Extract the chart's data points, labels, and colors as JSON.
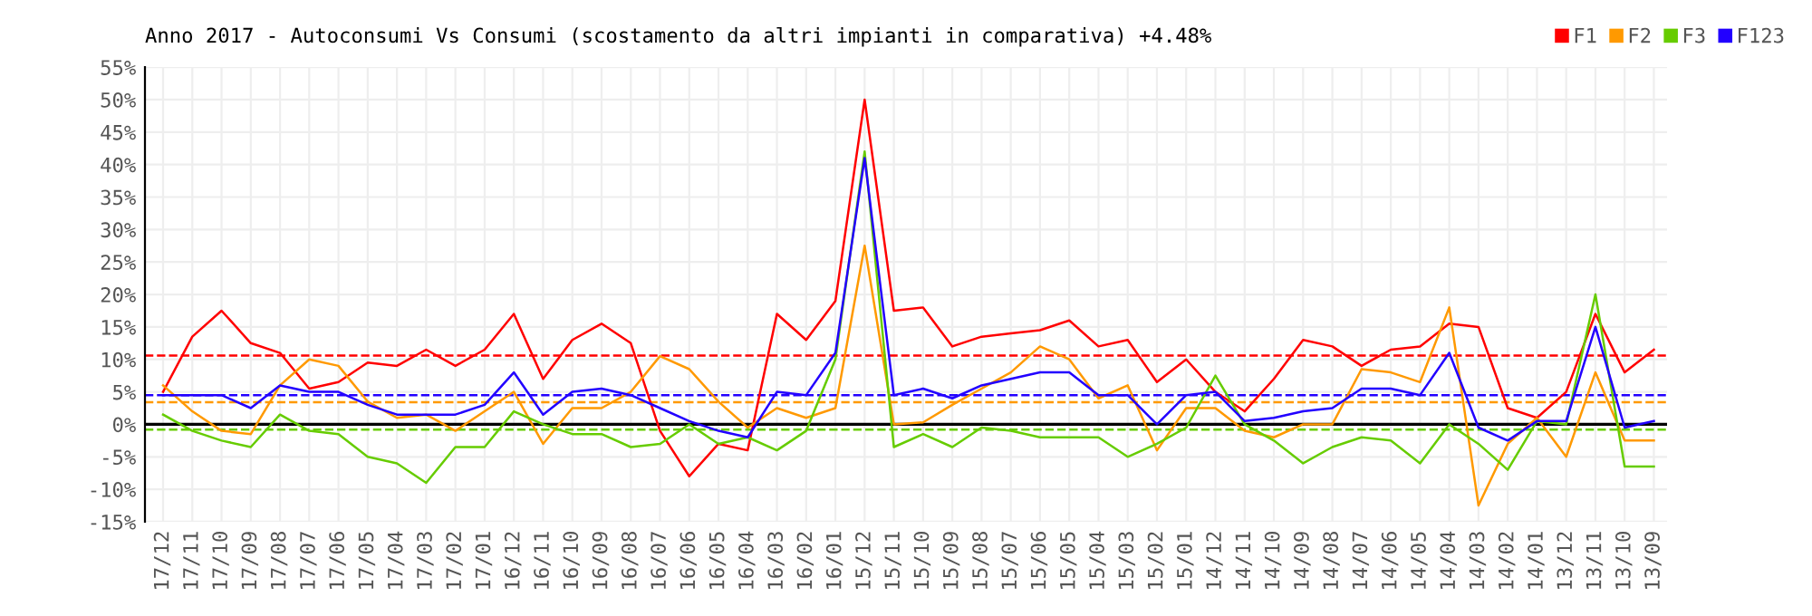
{
  "chart_data": {
    "type": "line",
    "title": "Anno 2017 - Autoconsumi Vs Consumi (scostamento da altri impianti in comparativa) +4.48%",
    "categories": [
      "17/12",
      "17/11",
      "17/10",
      "17/09",
      "17/08",
      "17/07",
      "17/06",
      "17/05",
      "17/04",
      "17/03",
      "17/02",
      "17/01",
      "16/12",
      "16/11",
      "16/10",
      "16/09",
      "16/08",
      "16/07",
      "16/06",
      "16/05",
      "16/04",
      "16/03",
      "16/02",
      "16/01",
      "15/12",
      "15/11",
      "15/10",
      "15/09",
      "15/08",
      "15/07",
      "15/06",
      "15/05",
      "15/04",
      "15/03",
      "15/02",
      "15/01",
      "14/12",
      "14/11",
      "14/10",
      "14/09",
      "14/08",
      "14/07",
      "14/06",
      "14/05",
      "14/04",
      "14/03",
      "14/02",
      "14/01",
      "13/12",
      "13/11",
      "13/10",
      "13/09"
    ],
    "series": [
      {
        "name": "F1",
        "color": "#ff0000",
        "values": [
          5,
          13.5,
          17.5,
          12.5,
          11,
          5.5,
          6.5,
          9.5,
          9,
          11.5,
          9,
          11.5,
          17,
          7,
          13,
          15.5,
          12.5,
          -1,
          -8,
          -3,
          -4,
          17,
          13,
          19,
          50,
          17.5,
          18,
          12,
          13.5,
          14,
          14.5,
          16,
          12,
          13,
          6.5,
          10,
          5,
          2,
          7,
          13,
          12,
          9,
          11.5,
          12,
          15.5,
          15,
          2.5,
          1,
          5,
          17,
          8,
          11.5
        ]
      },
      {
        "name": "F2",
        "color": "#ff9900",
        "values": [
          6,
          2,
          -1,
          -1.5,
          6,
          10,
          9,
          3.5,
          1,
          1.5,
          -1,
          2,
          5,
          -3,
          2.5,
          2.5,
          5,
          10.5,
          8.5,
          3.5,
          -0.5,
          2.5,
          1,
          2.5,
          27.5,
          0,
          0.3,
          3,
          5.5,
          8,
          12,
          10,
          4,
          6,
          -4,
          2.5,
          2.5,
          -1,
          -2,
          0,
          0,
          8.5,
          8,
          6.5,
          18,
          -12.5,
          -3,
          1,
          -5,
          8,
          -2.5,
          -2.5
        ]
      },
      {
        "name": "F3",
        "color": "#66cc00",
        "values": [
          1.5,
          -1,
          -2.5,
          -3.5,
          1.5,
          -1,
          -1.5,
          -5,
          -6,
          -9,
          -3.5,
          -3.5,
          2,
          0,
          -1.5,
          -1.5,
          -3.5,
          -3,
          0,
          -3,
          -2,
          -4,
          -1,
          10,
          42,
          -3.5,
          -1.5,
          -3.5,
          -0.5,
          -1,
          -2,
          -2,
          -2,
          -5,
          -3,
          -0.5,
          7.5,
          0,
          -2.5,
          -6,
          -3.5,
          -2,
          -2.5,
          -6,
          0,
          -3,
          -7,
          0.5,
          0,
          20,
          -6.5,
          -6.5
        ]
      },
      {
        "name": "F123",
        "color": "#2200ff",
        "values": [
          4.5,
          4.5,
          4.5,
          2.5,
          6,
          5,
          5,
          3,
          1.5,
          1.5,
          1.5,
          3,
          8,
          1.5,
          5,
          5.5,
          4.5,
          2.5,
          0.5,
          -1,
          -2,
          5,
          4.5,
          11,
          41,
          4.5,
          5.5,
          4,
          6,
          7,
          8,
          8,
          4.5,
          4.5,
          0,
          4.5,
          5,
          0.5,
          1,
          2,
          2.5,
          5.5,
          5.5,
          4.5,
          11,
          -0.5,
          -2.5,
          0.5,
          0.5,
          15,
          -0.5,
          0.5
        ]
      }
    ],
    "ylim": [
      -15,
      55
    ],
    "yticks": [
      {
        "value": -15,
        "label": "-15%"
      },
      {
        "value": -10,
        "label": "-10%"
      },
      {
        "value": -5,
        "label": "-5%"
      },
      {
        "value": 0,
        "label": "0%"
      },
      {
        "value": 5,
        "label": "5%"
      },
      {
        "value": 10,
        "label": "10%"
      },
      {
        "value": 15,
        "label": "15%"
      },
      {
        "value": 20,
        "label": "20%"
      },
      {
        "value": 25,
        "label": "25%"
      },
      {
        "value": 30,
        "label": "30%"
      },
      {
        "value": 35,
        "label": "35%"
      },
      {
        "value": 40,
        "label": "40%"
      },
      {
        "value": 45,
        "label": "45%"
      },
      {
        "value": 50,
        "label": "50%"
      },
      {
        "value": 55,
        "label": "55%"
      }
    ],
    "ref_lines": [
      {
        "axis": "y",
        "value": 0,
        "color": "#000000",
        "line_style": "solid"
      },
      {
        "axis": "y",
        "value": 10.6,
        "color": "#ff0000",
        "line_style": "dashed"
      },
      {
        "axis": "y",
        "value": 3.4,
        "color": "#ff9900",
        "line_style": "dashed"
      },
      {
        "axis": "y",
        "value": -0.8,
        "color": "#66cc00",
        "line_style": "dashed"
      },
      {
        "axis": "y",
        "value": 4.48,
        "color": "#2200ff",
        "line_style": "dashed"
      }
    ],
    "grid": true,
    "legend": "top right",
    "marker": "none",
    "line_style": "solid"
  }
}
